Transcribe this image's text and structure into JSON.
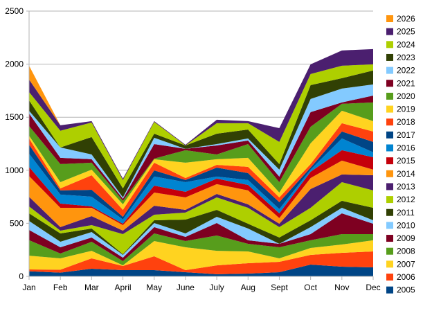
{
  "chart_data": {
    "type": "area",
    "stacked": true,
    "categories": [
      "Jan",
      "Feb",
      "Mar",
      "April",
      "May",
      "June",
      "July",
      "Aug",
      "Sept",
      "Oct",
      "Nov",
      "Dec"
    ],
    "ylim": [
      0,
      2500
    ],
    "yticks": [
      "0",
      "500",
      "1000",
      "1500",
      "2000",
      "2500"
    ],
    "ytick_values": [
      0,
      500,
      1000,
      1500,
      2000,
      2500
    ],
    "grid": true,
    "legend_position": "right",
    "series": [
      {
        "name": "2005",
        "color": "#004586",
        "values": [
          48,
          35,
          72,
          59,
          59,
          39,
          20,
          26,
          39,
          111,
          91,
          85
        ]
      },
      {
        "name": "2006",
        "color": "#ff420e",
        "values": [
          17,
          28,
          98,
          39,
          130,
          20,
          84,
          98,
          98,
          91,
          131,
          150
        ]
      },
      {
        "name": "2007",
        "color": "#ffd320",
        "values": [
          130,
          107,
          71,
          6,
          144,
          215,
          137,
          111,
          33,
          66,
          78,
          105
        ]
      },
      {
        "name": "2008",
        "color": "#579d1c",
        "values": [
          146,
          45,
          85,
          40,
          72,
          59,
          144,
          72,
          104,
          72,
          98,
          58
        ]
      },
      {
        "name": "2009",
        "color": "#7e0021",
        "values": [
          96,
          59,
          40,
          32,
          59,
          39,
          118,
          33,
          33,
          58,
          196,
          98
        ]
      },
      {
        "name": "2010",
        "color": "#83caff",
        "values": [
          85,
          52,
          52,
          26,
          39,
          33,
          58,
          111,
          0,
          66,
          52,
          33
        ]
      },
      {
        "name": "2011",
        "color": "#314004",
        "values": [
          72,
          79,
          33,
          7,
          26,
          130,
          66,
          45,
          59,
          65,
          66,
          117
        ]
      },
      {
        "name": "2012",
        "color": "#aecf00",
        "values": [
          65,
          26,
          32,
          189,
          52,
          66,
          117,
          150,
          98,
          117,
          176,
          164
        ]
      },
      {
        "name": "2013",
        "color": "#4b1f6f",
        "values": [
          91,
          33,
          85,
          33,
          85,
          26,
          33,
          33,
          32,
          177,
          72,
          143
        ]
      },
      {
        "name": "2014",
        "color": "#ff950e",
        "values": [
          196,
          182,
          78,
          52,
          124,
          117,
          92,
          131,
          53,
          104,
          131,
          53
        ]
      },
      {
        "name": "2015",
        "color": "#c5000b",
        "values": [
          85,
          40,
          13,
          13,
          65,
          53,
          52,
          52,
          45,
          59,
          98,
          117
        ]
      },
      {
        "name": "2016",
        "color": "#0084d1",
        "values": [
          125,
          85,
          92,
          40,
          86,
          91,
          20,
          46,
          40,
          20,
          111,
          46
        ]
      },
      {
        "name": "2017",
        "color": "#004586",
        "values": [
          85,
          39,
          65,
          25,
          58,
          20,
          84,
          65,
          65,
          19,
          65,
          98
        ]
      },
      {
        "name": "2018",
        "color": "#ff420e",
        "values": [
          59,
          19,
          137,
          66,
          72,
          19,
          26,
          59,
          45,
          33,
          78,
          98
        ]
      },
      {
        "name": "2019",
        "color": "#ffd320",
        "values": [
          26,
          59,
          53,
          52,
          33,
          144,
          53,
          85,
          46,
          196,
          118,
          98
        ]
      },
      {
        "name": "2020",
        "color": "#579d1c",
        "values": [
          91,
          170,
          65,
          33,
          6,
          118,
          45,
          130,
          98,
          156,
          65,
          176
        ]
      },
      {
        "name": "2021",
        "color": "#7e0021",
        "values": [
          118,
          59,
          33,
          19,
          137,
          13,
          85,
          33,
          52,
          138,
          13,
          65
        ]
      },
      {
        "name": "2022",
        "color": "#83caff",
        "values": [
          26,
          98,
          45,
          13,
          59,
          0,
          13,
          20,
          66,
          124,
          131,
          105
        ]
      },
      {
        "name": "2023",
        "color": "#314004",
        "values": [
          98,
          0,
          164,
          85,
          39,
          32,
          98,
          84,
          52,
          130,
          98,
          131
        ]
      },
      {
        "name": "2024",
        "color": "#aecf00",
        "values": [
          78,
          157,
          137,
          79,
          111,
          0,
          98,
          59,
          209,
          105,
          117,
          58
        ]
      },
      {
        "name": "2025",
        "color": "#4b1f6f",
        "values": [
          118,
          52,
          13,
          13,
          7,
          6,
          33,
          20,
          130,
          91,
          144,
          144
        ]
      },
      {
        "name": "2026",
        "color": "#ff950e",
        "values": [
          130,
          0,
          0,
          0,
          0,
          0,
          0,
          0,
          0,
          0,
          0,
          0
        ]
      }
    ]
  }
}
